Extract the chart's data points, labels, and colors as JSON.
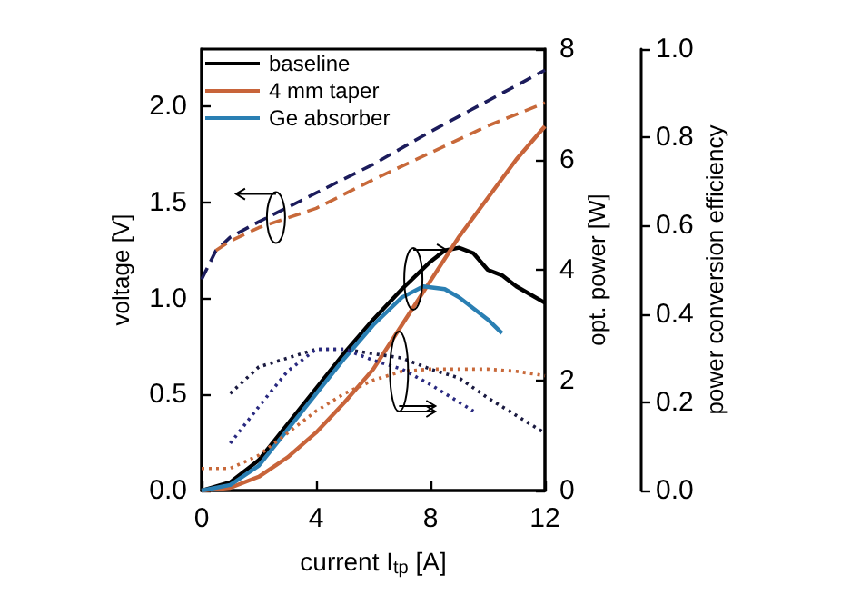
{
  "chart_data": {
    "type": "line",
    "xlabel": "current I$_{tp}$ [A]",
    "ylabel": "voltage [V]",
    "y2label": "opt. power [W]",
    "y3label": "power conversion efficiency",
    "xlim": [
      0,
      12
    ],
    "xticks": [
      0,
      4,
      8,
      12
    ],
    "ylim": [
      0,
      2.3
    ],
    "yticks": [
      {
        "value": 0,
        "label": "0.0"
      },
      0.5,
      {
        "value": 1,
        "label": "1.0"
      },
      1.5,
      {
        "value": 2,
        "label": "2.0"
      }
    ],
    "y2lim": [
      0,
      8
    ],
    "y2ticks": [
      0,
      2,
      4,
      6,
      8
    ],
    "y3lim": [
      0,
      1
    ],
    "y3ticks": [
      {
        "value": 0,
        "label": "0.0"
      },
      0.2,
      0.4,
      0.6,
      0.8,
      {
        "value": 1,
        "label": "1.0"
      }
    ],
    "legend": "top left",
    "grid": false,
    "marker": "none",
    "series": [
      {
        "name": "baseline",
        "color": "#000000",
        "axis": "y2",
        "line_style": "solid",
        "x": [
          0,
          1,
          2,
          3,
          4,
          5,
          6,
          7,
          8,
          8.5,
          9,
          9.5,
          10,
          10.5,
          11,
          12
        ],
        "values": [
          0,
          0.15,
          0.55,
          1.2,
          1.85,
          2.5,
          3.1,
          3.65,
          4.15,
          4.35,
          4.4,
          4.3,
          4.0,
          3.9,
          3.7,
          3.4
        ]
      },
      {
        "name": "4 mm taper",
        "color": "#c8643a",
        "axis": "y2",
        "line_style": "solid",
        "x": [
          0,
          1,
          2,
          3,
          4,
          5,
          6,
          7,
          8,
          9,
          10,
          11,
          12
        ],
        "values": [
          0,
          0.05,
          0.25,
          0.6,
          1.05,
          1.6,
          2.2,
          3.0,
          3.8,
          4.6,
          5.3,
          6.0,
          6.6
        ]
      },
      {
        "name": "Ge absorber",
        "color": "#2a7fb3",
        "axis": "y2",
        "line_style": "solid",
        "x": [
          0,
          1,
          2,
          3,
          4,
          5,
          6,
          7,
          7.75,
          8.5,
          9,
          10,
          10.5
        ],
        "values": [
          0,
          0.1,
          0.45,
          1.1,
          1.75,
          2.4,
          3.0,
          3.5,
          3.7,
          3.65,
          3.5,
          3.1,
          2.85
        ]
      },
      {
        "color": "#1c1c5c",
        "axis": "y",
        "line_style": "dashed",
        "x": [
          0,
          0.5,
          1,
          2,
          4,
          6,
          8,
          10,
          12
        ],
        "values": [
          1.1,
          1.25,
          1.32,
          1.4,
          1.55,
          1.7,
          1.87,
          2.03,
          2.19
        ]
      },
      {
        "color": "#c8693a",
        "axis": "y",
        "line_style": "dashed",
        "x": [
          0.5,
          1,
          2,
          4,
          6,
          8,
          10,
          12
        ],
        "values": [
          1.25,
          1.3,
          1.37,
          1.47,
          1.62,
          1.76,
          1.9,
          2.02
        ]
      },
      {
        "color": "#1a1a40",
        "axis": "y3",
        "line_style": "dotted",
        "x": [
          1,
          2,
          3,
          4,
          5,
          6,
          7,
          8,
          9,
          10,
          11,
          12
        ],
        "values": [
          0.22,
          0.28,
          0.3,
          0.32,
          0.32,
          0.31,
          0.3,
          0.275,
          0.255,
          0.21,
          0.17,
          0.13
        ]
      },
      {
        "color": "#2a2a80",
        "axis": "y3",
        "line_style": "dotted",
        "x": [
          1,
          2,
          3,
          4,
          5,
          6,
          7,
          8,
          9,
          9.5
        ],
        "values": [
          0.107,
          0.19,
          0.27,
          0.32,
          0.32,
          0.295,
          0.275,
          0.24,
          0.2,
          0.18
        ]
      },
      {
        "color": "#c8693a",
        "axis": "y3",
        "line_style": "dotted",
        "x": [
          0,
          1,
          2,
          3,
          4,
          5,
          6,
          7,
          8,
          9,
          10,
          11,
          12
        ],
        "values": [
          0.05,
          0.05,
          0.08,
          0.13,
          0.18,
          0.22,
          0.25,
          0.27,
          0.275,
          0.275,
          0.275,
          0.27,
          0.26
        ]
      }
    ]
  }
}
